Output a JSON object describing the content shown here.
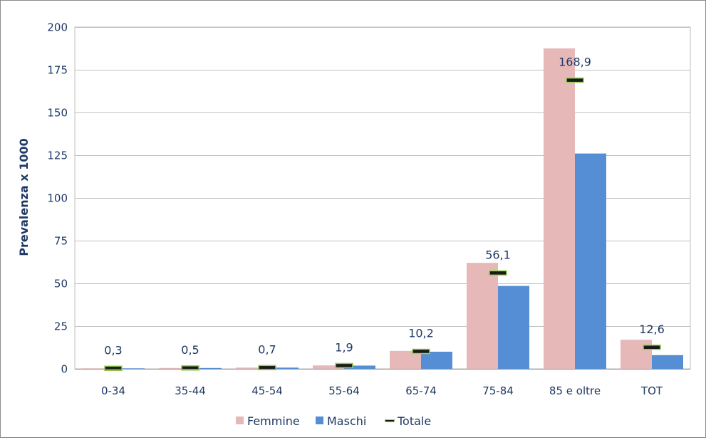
{
  "chart_data": {
    "type": "bar",
    "ylabel": "Prevalenza x 1000",
    "ylim": [
      0,
      200
    ],
    "yticks": [
      0,
      25,
      50,
      75,
      100,
      125,
      150,
      175,
      200
    ],
    "grid": true,
    "legend_position": "bottom",
    "categories": [
      "0-34",
      "35-44",
      "45-54",
      "55-64",
      "65-74",
      "75-84",
      "85 e oltre",
      "TOT"
    ],
    "series": [
      {
        "name": "Femmine",
        "type": "bar",
        "color": "#e6b9b8",
        "values": [
          0.3,
          0.5,
          0.7,
          2.0,
          10.5,
          62.0,
          187.5,
          17.0
        ]
      },
      {
        "name": "Maschi",
        "type": "bar",
        "color": "#558ed5",
        "values": [
          0.3,
          0.5,
          0.7,
          1.9,
          10.0,
          48.5,
          126.0,
          8.0
        ]
      },
      {
        "name": "Totale",
        "type": "marker",
        "color": "#1a1a1a",
        "outline": "#92d050",
        "values": [
          0.3,
          0.5,
          0.7,
          1.9,
          10.2,
          56.1,
          168.9,
          12.6
        ]
      }
    ],
    "data_labels": [
      "0,3",
      "0,5",
      "0,7",
      "1,9",
      "10,2",
      "56,1",
      "168,9",
      "12,6"
    ]
  }
}
